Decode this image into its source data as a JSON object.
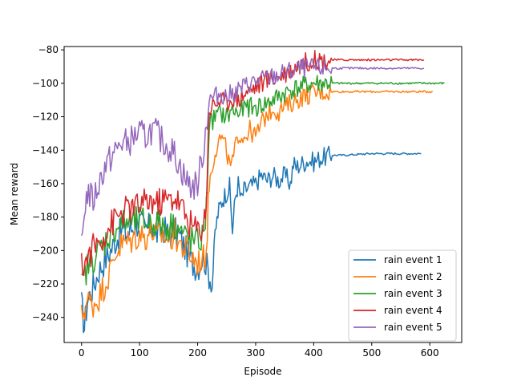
{
  "chart_data": {
    "type": "line",
    "title": "",
    "xlabel": "Episode",
    "ylabel": "Mean reward",
    "xlim": [
      -30,
      655
    ],
    "ylim": [
      -255,
      -78
    ],
    "xticks": [
      0,
      100,
      200,
      300,
      400,
      500,
      600
    ],
    "yticks": [
      -240,
      -220,
      -200,
      -180,
      -160,
      -140,
      -120,
      -100,
      -80
    ],
    "grid": false,
    "legend_position": "lower-right",
    "series": [
      {
        "name": "rain event 1",
        "color": "#1f77b4",
        "points": [
          [
            0,
            -232
          ],
          [
            5,
            -246
          ],
          [
            10,
            -230
          ],
          [
            20,
            -222
          ],
          [
            30,
            -212
          ],
          [
            40,
            -206
          ],
          [
            50,
            -200
          ],
          [
            60,
            -193
          ],
          [
            70,
            -188
          ],
          [
            80,
            -190
          ],
          [
            90,
            -185
          ],
          [
            100,
            -183
          ],
          [
            110,
            -188
          ],
          [
            120,
            -185
          ],
          [
            130,
            -190
          ],
          [
            140,
            -186
          ],
          [
            150,
            -191
          ],
          [
            160,
            -188
          ],
          [
            170,
            -192
          ],
          [
            180,
            -200
          ],
          [
            190,
            -207
          ],
          [
            200,
            -210
          ],
          [
            210,
            -203
          ],
          [
            218,
            -212
          ],
          [
            225,
            -222
          ],
          [
            230,
            -190
          ],
          [
            235,
            -178
          ],
          [
            240,
            -172
          ],
          [
            245,
            -168
          ],
          [
            250,
            -165
          ],
          [
            255,
            -162
          ],
          [
            260,
            -188
          ],
          [
            265,
            -168
          ],
          [
            270,
            -160
          ],
          [
            275,
            -170
          ],
          [
            280,
            -164
          ],
          [
            290,
            -162
          ],
          [
            300,
            -160
          ],
          [
            310,
            -155
          ],
          [
            320,
            -158
          ],
          [
            330,
            -155
          ],
          [
            340,
            -158
          ],
          [
            350,
            -155
          ],
          [
            360,
            -160
          ],
          [
            365,
            -148
          ],
          [
            370,
            -150
          ],
          [
            380,
            -148
          ],
          [
            390,
            -146
          ],
          [
            400,
            -147
          ],
          [
            410,
            -145
          ],
          [
            420,
            -144
          ],
          [
            430,
            -143
          ],
          [
            450,
            -143
          ],
          [
            500,
            -142
          ],
          [
            550,
            -142
          ],
          [
            575,
            -142
          ],
          [
            585,
            -142
          ]
        ]
      },
      {
        "name": "rain event 2",
        "color": "#ff7f0e",
        "points": [
          [
            0,
            -240
          ],
          [
            10,
            -230
          ],
          [
            20,
            -232
          ],
          [
            30,
            -228
          ],
          [
            40,
            -220
          ],
          [
            50,
            -212
          ],
          [
            60,
            -200
          ],
          [
            70,
            -196
          ],
          [
            80,
            -195
          ],
          [
            90,
            -193
          ],
          [
            100,
            -190
          ],
          [
            110,
            -192
          ],
          [
            120,
            -188
          ],
          [
            130,
            -192
          ],
          [
            140,
            -190
          ],
          [
            150,
            -194
          ],
          [
            160,
            -190
          ],
          [
            170,
            -196
          ],
          [
            180,
            -200
          ],
          [
            190,
            -204
          ],
          [
            200,
            -207
          ],
          [
            210,
            -205
          ],
          [
            215,
            -200
          ],
          [
            220,
            -160
          ],
          [
            225,
            -150
          ],
          [
            230,
            -140
          ],
          [
            240,
            -132
          ],
          [
            250,
            -140
          ],
          [
            255,
            -150
          ],
          [
            260,
            -148
          ],
          [
            270,
            -130
          ],
          [
            280,
            -132
          ],
          [
            290,
            -128
          ],
          [
            300,
            -132
          ],
          [
            310,
            -124
          ],
          [
            320,
            -118
          ],
          [
            330,
            -115
          ],
          [
            340,
            -117
          ],
          [
            350,
            -114
          ],
          [
            360,
            -112
          ],
          [
            370,
            -110
          ],
          [
            380,
            -108
          ],
          [
            390,
            -107
          ],
          [
            400,
            -106
          ],
          [
            410,
            -105
          ],
          [
            420,
            -105
          ],
          [
            430,
            -105
          ],
          [
            450,
            -105
          ],
          [
            500,
            -105
          ],
          [
            550,
            -105
          ],
          [
            590,
            -105
          ],
          [
            600,
            -105
          ],
          [
            605,
            -105
          ]
        ]
      },
      {
        "name": "rain event 3",
        "color": "#2ca02c",
        "points": [
          [
            0,
            -222
          ],
          [
            10,
            -210
          ],
          [
            20,
            -205
          ],
          [
            30,
            -200
          ],
          [
            40,
            -195
          ],
          [
            50,
            -190
          ],
          [
            60,
            -186
          ],
          [
            70,
            -184
          ],
          [
            80,
            -183
          ],
          [
            90,
            -183
          ],
          [
            100,
            -182
          ],
          [
            110,
            -183
          ],
          [
            120,
            -184
          ],
          [
            130,
            -183
          ],
          [
            140,
            -185
          ],
          [
            150,
            -186
          ],
          [
            160,
            -184
          ],
          [
            170,
            -188
          ],
          [
            180,
            -192
          ],
          [
            190,
            -194
          ],
          [
            200,
            -195
          ],
          [
            210,
            -192
          ],
          [
            215,
            -175
          ],
          [
            220,
            -125
          ],
          [
            230,
            -120
          ],
          [
            240,
            -118
          ],
          [
            250,
            -120
          ],
          [
            260,
            -116
          ],
          [
            270,
            -118
          ],
          [
            280,
            -115
          ],
          [
            290,
            -114
          ],
          [
            300,
            -115
          ],
          [
            310,
            -113
          ],
          [
            320,
            -112
          ],
          [
            330,
            -110
          ],
          [
            340,
            -108
          ],
          [
            350,
            -106
          ],
          [
            360,
            -104
          ],
          [
            370,
            -103
          ],
          [
            380,
            -102
          ],
          [
            390,
            -101
          ],
          [
            400,
            -100
          ],
          [
            420,
            -100
          ],
          [
            450,
            -100
          ],
          [
            500,
            -100
          ],
          [
            550,
            -100
          ],
          [
            600,
            -100
          ],
          [
            625,
            -100
          ]
        ]
      },
      {
        "name": "rain event 4",
        "color": "#d62728",
        "points": [
          [
            0,
            -210
          ],
          [
            10,
            -205
          ],
          [
            20,
            -198
          ],
          [
            30,
            -195
          ],
          [
            40,
            -190
          ],
          [
            50,
            -185
          ],
          [
            60,
            -180
          ],
          [
            70,
            -178
          ],
          [
            80,
            -175
          ],
          [
            90,
            -175
          ],
          [
            100,
            -173
          ],
          [
            110,
            -172
          ],
          [
            120,
            -170
          ],
          [
            130,
            -172
          ],
          [
            140,
            -170
          ],
          [
            150,
            -170
          ],
          [
            160,
            -168
          ],
          [
            170,
            -172
          ],
          [
            180,
            -180
          ],
          [
            190,
            -185
          ],
          [
            200,
            -188
          ],
          [
            210,
            -185
          ],
          [
            215,
            -170
          ],
          [
            220,
            -115
          ],
          [
            230,
            -112
          ],
          [
            240,
            -110
          ],
          [
            250,
            -112
          ],
          [
            260,
            -108
          ],
          [
            270,
            -110
          ],
          [
            280,
            -106
          ],
          [
            290,
            -104
          ],
          [
            300,
            -102
          ],
          [
            310,
            -100
          ],
          [
            320,
            -98
          ],
          [
            330,
            -97
          ],
          [
            340,
            -96
          ],
          [
            350,
            -94
          ],
          [
            360,
            -92
          ],
          [
            370,
            -90
          ],
          [
            380,
            -88
          ],
          [
            390,
            -87
          ],
          [
            400,
            -86
          ],
          [
            420,
            -86
          ],
          [
            450,
            -86
          ],
          [
            500,
            -86
          ],
          [
            550,
            -86
          ],
          [
            590,
            -86
          ]
        ]
      },
      {
        "name": "rain event 5",
        "color": "#9467bd",
        "points": [
          [
            0,
            -200
          ],
          [
            5,
            -175
          ],
          [
            10,
            -165
          ],
          [
            20,
            -170
          ],
          [
            30,
            -160
          ],
          [
            40,
            -150
          ],
          [
            50,
            -145
          ],
          [
            60,
            -140
          ],
          [
            70,
            -135
          ],
          [
            80,
            -136
          ],
          [
            90,
            -132
          ],
          [
            100,
            -130
          ],
          [
            110,
            -132
          ],
          [
            120,
            -128
          ],
          [
            130,
            -130
          ],
          [
            140,
            -135
          ],
          [
            150,
            -138
          ],
          [
            160,
            -142
          ],
          [
            170,
            -150
          ],
          [
            180,
            -158
          ],
          [
            190,
            -162
          ],
          [
            200,
            -160
          ],
          [
            210,
            -140
          ],
          [
            215,
            -125
          ],
          [
            220,
            -110
          ],
          [
            230,
            -108
          ],
          [
            240,
            -106
          ],
          [
            250,
            -108
          ],
          [
            260,
            -106
          ],
          [
            270,
            -104
          ],
          [
            280,
            -102
          ],
          [
            290,
            -100
          ],
          [
            300,
            -99
          ],
          [
            310,
            -98
          ],
          [
            320,
            -97
          ],
          [
            330,
            -96
          ],
          [
            340,
            -95
          ],
          [
            350,
            -94
          ],
          [
            360,
            -93
          ],
          [
            370,
            -92
          ],
          [
            380,
            -91
          ],
          [
            390,
            -91
          ],
          [
            400,
            -91
          ],
          [
            450,
            -91
          ],
          [
            500,
            -91
          ],
          [
            550,
            -91
          ],
          [
            590,
            -91
          ]
        ]
      }
    ]
  }
}
